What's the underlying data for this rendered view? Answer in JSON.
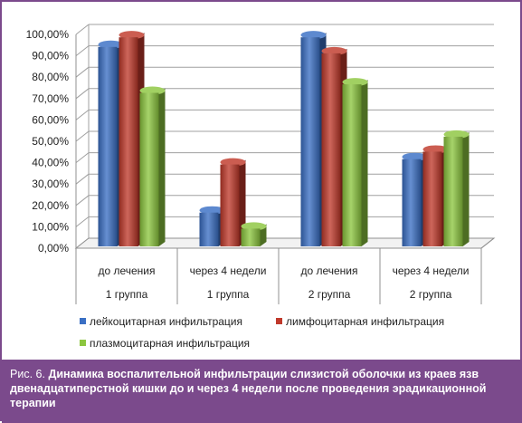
{
  "chart_data": {
    "type": "bar",
    "categories": [
      {
        "line1": "до лечения",
        "line2": "1 группа"
      },
      {
        "line1": "через 4 недели",
        "line2": "1 группа"
      },
      {
        "line1": "до лечения",
        "line2": "2 группа"
      },
      {
        "line1": "через 4 недели",
        "line2": "2 группа"
      }
    ],
    "series": [
      {
        "name": "лейкоцитарная инфильтрация",
        "color": "#3a6fc4",
        "values": [
          95,
          17.5,
          99.5,
          42.5
        ]
      },
      {
        "name": "лимфоцитарная инфильтрация",
        "color": "#c0392b",
        "values": [
          99.5,
          40,
          92,
          46
        ]
      },
      {
        "name": "плазмоцитарная инфильтрация",
        "color": "#8cc63f",
        "values": [
          73.5,
          10,
          77.5,
          53
        ]
      }
    ],
    "yticks": [
      "0,00%",
      "10,00%",
      "20,00%",
      "30,00%",
      "40,00%",
      "50,00%",
      "60,00%",
      "70,00%",
      "80,00%",
      "90,00%",
      "100,00%"
    ],
    "ylim": [
      0,
      100
    ],
    "grid": true,
    "legend": "bottom"
  },
  "caption": {
    "prefix": "Рис. 6.",
    "text": "Динамика воспалительной инфильтрации слизистой оболочки из краев язв двенадцатиперстной кишки до и через 4 недели после проведения эрадикационной терапии"
  },
  "colors": {
    "frame": "#7b4a8c"
  }
}
